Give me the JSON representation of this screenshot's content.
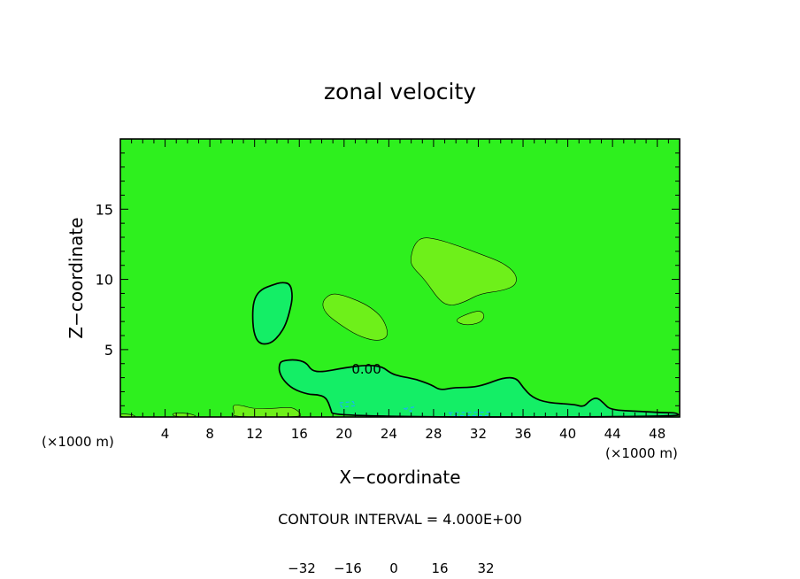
{
  "chart_data": {
    "type": "contour",
    "title": "zonal velocity",
    "xlabel": "X−coordinate",
    "ylabel": "Z−coordinate",
    "x_unit_left": "(×1000 m)",
    "x_unit_right": "(×1000 m)",
    "xlim": [
      0,
      50
    ],
    "ylim": [
      0.2,
      20
    ],
    "x_ticks": [
      4,
      8,
      12,
      16,
      20,
      24,
      28,
      32,
      36,
      40,
      44,
      48
    ],
    "y_ticks": [
      5,
      10,
      15
    ],
    "contour_interval_text": "CONTOUR INTERVAL = 4.000E+00",
    "contour_label": "0.00",
    "colorbar": {
      "colors": [
        "#7a00a6",
        "#2a00a0",
        "#0c18c4",
        "#0a3ae6",
        "#1466ff",
        "#1c9cff",
        "#0fd0ff",
        "#10ecd0",
        "#10f0a0",
        "#14ee66",
        "#2ef01e",
        "#6ef01a",
        "#a8f010",
        "#dff008",
        "#ffd000",
        "#ff9400",
        "#ff5a00",
        "#ff2200",
        "#ff4444",
        "#ff6e6e",
        "#ffa0a0"
      ],
      "tick_labels": [
        "−32",
        "−16",
        "0",
        "16",
        "32"
      ],
      "tick_values": [
        -32,
        -16,
        0,
        16,
        32
      ]
    },
    "background_color": "#2ef01e",
    "features": [
      {
        "kind": "negative",
        "color": "#14ee66",
        "points": [
          [
            11.8,
            7.7
          ],
          [
            12.0,
            8.7
          ],
          [
            12.6,
            9.3
          ],
          [
            13.6,
            9.6
          ],
          [
            14.4,
            9.8
          ],
          [
            15.2,
            9.7
          ],
          [
            15.4,
            8.8
          ],
          [
            15.2,
            7.9
          ],
          [
            14.8,
            6.8
          ],
          [
            14.2,
            6.0
          ],
          [
            13.4,
            5.4
          ],
          [
            12.4,
            5.4
          ],
          [
            11.9,
            6.2
          ]
        ]
      },
      {
        "kind": "positive",
        "color": "#6ef01a",
        "points": [
          [
            18.0,
            8.4
          ],
          [
            18.8,
            9.0
          ],
          [
            19.8,
            8.9
          ],
          [
            21.2,
            8.5
          ],
          [
            22.4,
            8.0
          ],
          [
            23.4,
            7.3
          ],
          [
            23.9,
            6.4
          ],
          [
            23.8,
            5.8
          ],
          [
            22.8,
            5.6
          ],
          [
            21.2,
            6.0
          ],
          [
            19.6,
            6.8
          ],
          [
            18.3,
            7.6
          ]
        ]
      },
      {
        "kind": "positive",
        "color": "#6ef01a",
        "points": [
          [
            25.9,
            11.3
          ],
          [
            26.2,
            12.4
          ],
          [
            26.9,
            13.0
          ],
          [
            28.2,
            12.9
          ],
          [
            30.2,
            12.4
          ],
          [
            32.2,
            11.8
          ],
          [
            34.2,
            11.2
          ],
          [
            35.4,
            10.4
          ],
          [
            35.4,
            9.6
          ],
          [
            34.2,
            9.2
          ],
          [
            32.2,
            9.0
          ],
          [
            30.8,
            8.4
          ],
          [
            29.6,
            8.1
          ],
          [
            28.6,
            8.4
          ],
          [
            27.2,
            10.0
          ],
          [
            26.2,
            10.8
          ]
        ]
      },
      {
        "kind": "positive",
        "color": "#6ef01a",
        "points": [
          [
            29.8,
            7.1
          ],
          [
            31.2,
            7.6
          ],
          [
            32.2,
            7.8
          ],
          [
            32.6,
            7.4
          ],
          [
            32.2,
            6.9
          ],
          [
            30.8,
            6.7
          ]
        ]
      },
      {
        "kind": "negative",
        "color": "#14ee66",
        "points": [
          [
            14.2,
            3.9
          ],
          [
            14.4,
            4.2
          ],
          [
            15.6,
            4.3
          ],
          [
            16.6,
            4.1
          ],
          [
            17.1,
            3.5
          ],
          [
            18.0,
            3.4
          ],
          [
            20.0,
            3.7
          ],
          [
            22.0,
            3.9
          ],
          [
            23.4,
            3.8
          ],
          [
            24.2,
            3.3
          ],
          [
            25.0,
            3.1
          ],
          [
            26.4,
            2.9
          ],
          [
            27.8,
            2.5
          ],
          [
            28.6,
            2.1
          ],
          [
            29.8,
            2.3
          ],
          [
            31.4,
            2.3
          ],
          [
            32.6,
            2.5
          ],
          [
            34.2,
            3.0
          ],
          [
            35.4,
            3.0
          ],
          [
            36.0,
            2.3
          ],
          [
            36.8,
            1.6
          ],
          [
            38.2,
            1.2
          ],
          [
            40.6,
            1.1
          ],
          [
            41.4,
            0.9
          ],
          [
            42.0,
            1.4
          ],
          [
            42.6,
            1.6
          ],
          [
            43.2,
            1.2
          ],
          [
            43.8,
            0.7
          ],
          [
            46.4,
            0.6
          ],
          [
            48.6,
            0.5
          ],
          [
            49.8,
            0.5
          ],
          [
            50,
            0.2
          ],
          [
            19.0,
            0.2
          ],
          [
            18.8,
            0.8
          ],
          [
            18.4,
            1.6
          ],
          [
            17.6,
            1.8
          ],
          [
            16.8,
            1.8
          ],
          [
            15.4,
            2.2
          ],
          [
            14.6,
            2.8
          ],
          [
            14.2,
            3.4
          ]
        ]
      },
      {
        "kind": "positive",
        "color": "#6ef01a",
        "points": [
          [
            10.0,
            1.1
          ],
          [
            11.0,
            1.0
          ],
          [
            11.8,
            0.8
          ],
          [
            13.6,
            0.8
          ],
          [
            15.0,
            0.9
          ],
          [
            15.6,
            0.8
          ],
          [
            16.2,
            0.4
          ],
          [
            16.0,
            0.2
          ],
          [
            10.0,
            0.2
          ],
          [
            10.2,
            0.5
          ]
        ]
      },
      {
        "kind": "positive",
        "color": "#6ef01a",
        "points": [
          [
            4.6,
            0.5
          ],
          [
            6.2,
            0.45
          ],
          [
            7.0,
            0.2
          ],
          [
            4.8,
            0.2
          ]
        ]
      },
      {
        "kind": "positive",
        "color": "#6ef01a",
        "points": [
          [
            0.0,
            0.45
          ],
          [
            1.2,
            0.35
          ],
          [
            1.4,
            0.2
          ],
          [
            0.0,
            0.2
          ]
        ]
      }
    ]
  }
}
